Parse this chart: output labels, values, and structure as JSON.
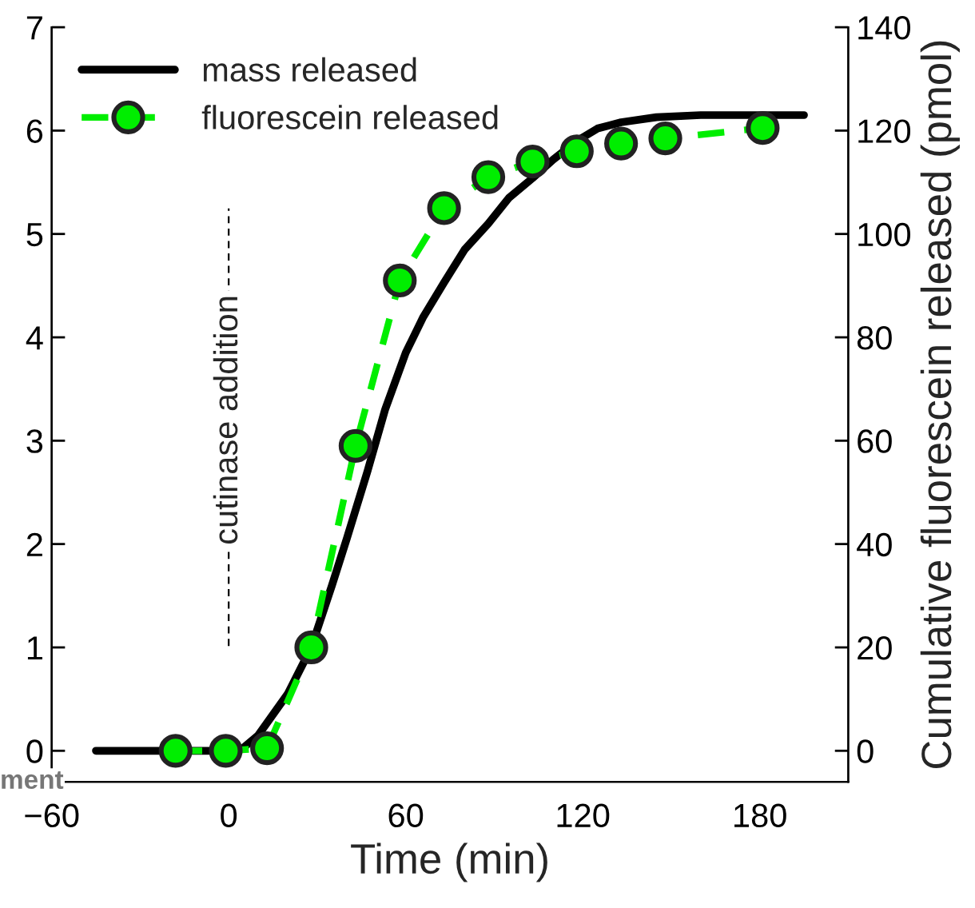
{
  "chart_data": {
    "type": "line",
    "xlabel": "Time (min)",
    "y2label": "Cumulative fluorescein released (pmol)",
    "xlim": [
      -60,
      210
    ],
    "xticks": [
      {
        "value": -60,
        "label": "−60"
      },
      0,
      60,
      120,
      180
    ],
    "ylim": [
      -0.3,
      7
    ],
    "yticks": [
      0,
      1,
      2,
      3,
      4,
      5,
      6,
      7
    ],
    "y2lim": [
      -6,
      140
    ],
    "y2ticks": [
      0,
      20,
      40,
      60,
      80,
      100,
      120,
      140
    ],
    "legend": "top left",
    "grid": false,
    "series": [
      {
        "name": "mass released",
        "color": "#000000",
        "marker": "none",
        "line_style": "solid",
        "x": [
          -45,
          0,
          5,
          10,
          20,
          28,
          35,
          40,
          47,
          53,
          60,
          66,
          73,
          80,
          88,
          95,
          103,
          110,
          118,
          125,
          133,
          145,
          160,
          195
        ],
        "values": [
          0,
          0,
          0.03,
          0.15,
          0.55,
          1.0,
          1.6,
          2.05,
          2.7,
          3.3,
          3.85,
          4.2,
          4.53,
          4.85,
          5.1,
          5.35,
          5.54,
          5.72,
          5.9,
          6.02,
          6.08,
          6.13,
          6.15,
          6.15
        ]
      },
      {
        "name": "fluorescein released",
        "color": "#00ee00",
        "marker": "circle",
        "line_style": "dashed",
        "axis": "y2",
        "x": [
          -18,
          -1,
          13,
          28,
          43,
          58,
          73,
          88,
          103,
          118,
          133,
          148,
          181
        ],
        "values": [
          0,
          0,
          0.5,
          20,
          59,
          91,
          105,
          111,
          114,
          116,
          117.5,
          118.5,
          120.5
        ]
      }
    ],
    "ref_lines": [
      {
        "axis": "x",
        "value": 0,
        "label": "cutinase addition",
        "color": "#000000",
        "line_style": "dashed"
      }
    ],
    "annotations": [
      "ment"
    ]
  }
}
